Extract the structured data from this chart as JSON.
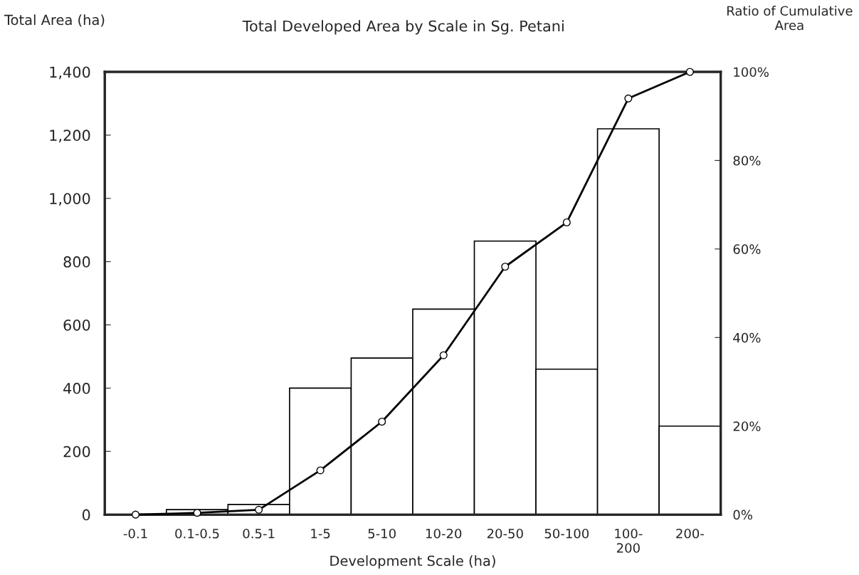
{
  "chart_data": {
    "type": "bar",
    "title": "Total Developed Area by Scale in Sg. Petani",
    "xlabel": "Development Scale (ha)",
    "ylabel": "Total Area (ha)",
    "y2label": "Ratio of Cumulative\nArea",
    "categories": [
      "-0.1",
      "0.1-0.5",
      "0.5-1",
      "1-5",
      "5-10",
      "10-20",
      "20-50",
      "50-100",
      "100-\n200",
      "200-"
    ],
    "series": [
      {
        "color": "#ffffff",
        "values": [
          null,
          16,
          32,
          400,
          495,
          650,
          865,
          460,
          1220,
          280
        ]
      },
      {
        "type": "line",
        "axis": "y2",
        "color": "#000000",
        "marker": "circle",
        "line_style": "solid",
        "values": [
          0,
          0.4,
          1.1,
          10,
          21,
          36,
          56,
          66,
          94,
          100
        ]
      }
    ],
    "ylim": [
      0,
      1400
    ],
    "yticks": [
      {
        "value": 0,
        "label": "0"
      },
      {
        "value": 200,
        "label": "200"
      },
      {
        "value": 400,
        "label": "400"
      },
      {
        "value": 600,
        "label": "600"
      },
      {
        "value": 800,
        "label": "800"
      },
      {
        "value": 1000,
        "label": "1,000"
      },
      {
        "value": 1200,
        "label": "1,200"
      },
      {
        "value": 1400,
        "label": "1,400"
      }
    ],
    "y2lim": [
      0,
      100
    ],
    "y2ticks": [
      {
        "value": 0,
        "label": "0%"
      },
      {
        "value": 20,
        "label": "20%"
      },
      {
        "value": 40,
        "label": "40%"
      },
      {
        "value": 60,
        "label": "60%"
      },
      {
        "value": 80,
        "label": "80%"
      },
      {
        "value": 100,
        "label": "100%"
      }
    ],
    "grid": false,
    "legend": false
  }
}
